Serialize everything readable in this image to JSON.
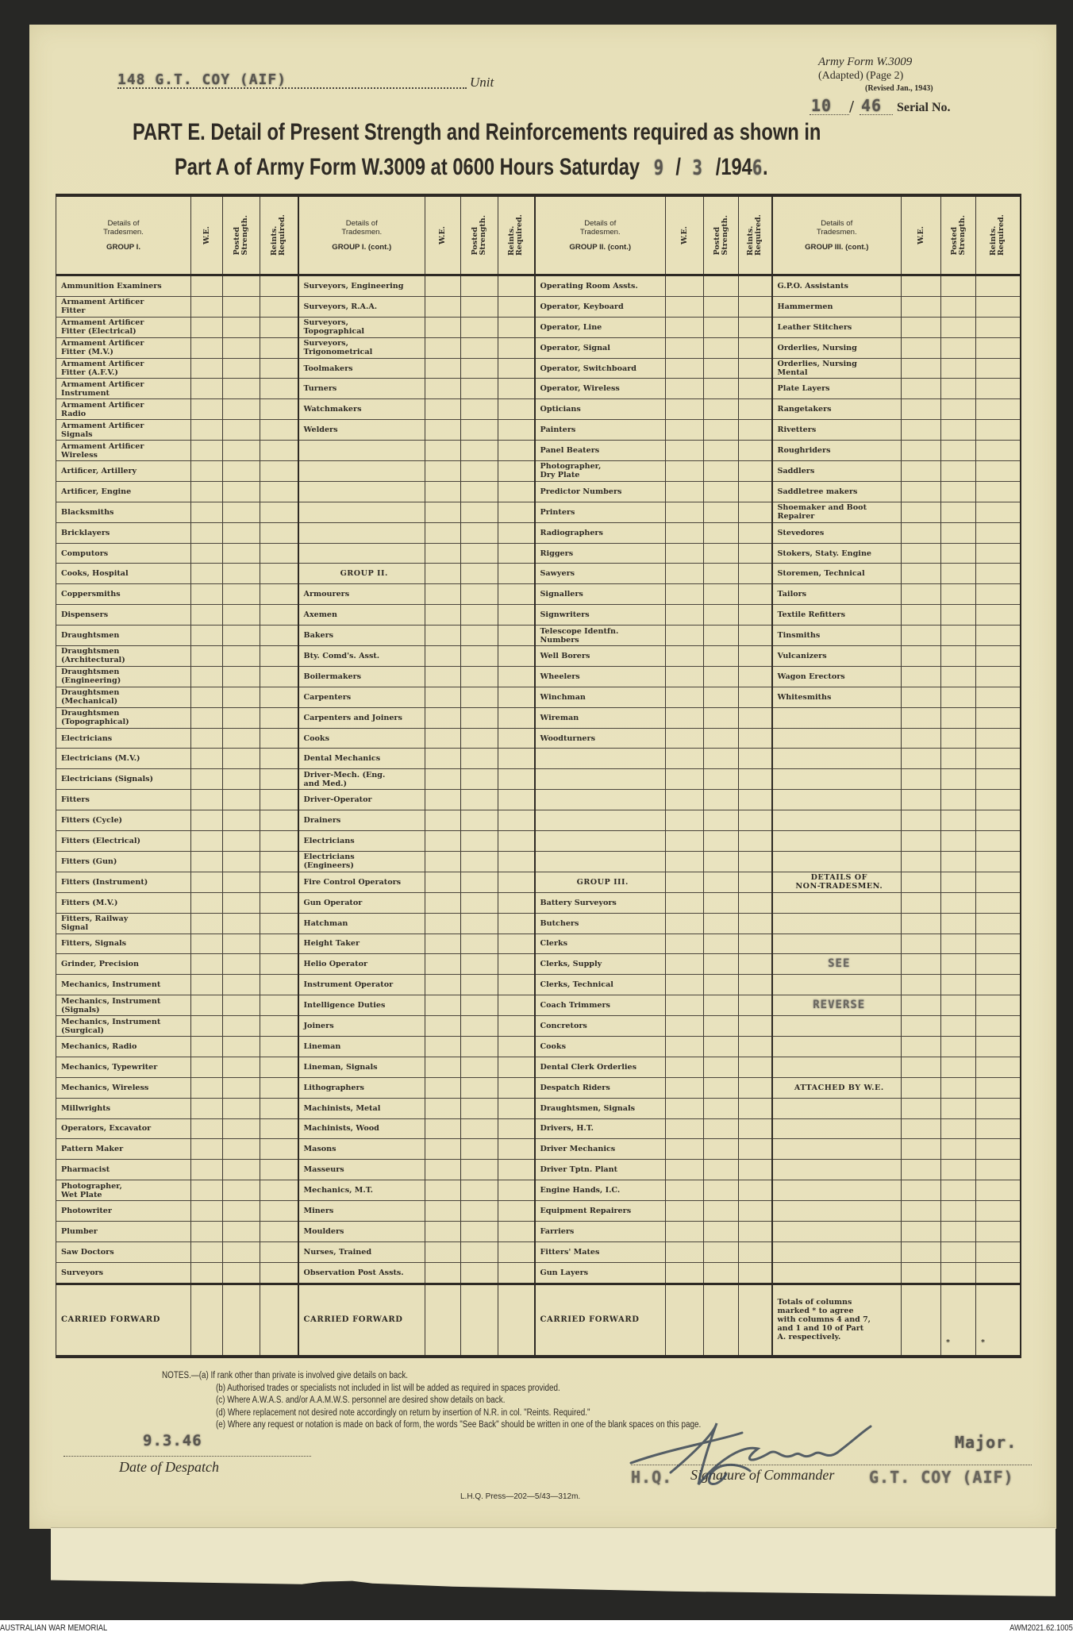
{
  "header": {
    "unit_value": "148 G.T. COY (AIF)",
    "unit_label": "Unit",
    "form_line1": "Army Form W.3009",
    "form_line2": "(Adapted) (Page 2)",
    "form_line3": "(Revised Jan., 1943)",
    "serial_a": "10",
    "serial_sep": "/",
    "serial_b": "46",
    "serial_label": "Serial No.",
    "title_line1": "PART E.  Detail of Present Strength and Reinforcements required as shown in",
    "title_line2_prefix": "Part A of Army Form W.3009 at 0600 Hours Saturday",
    "date_day": "9",
    "date_month": "3",
    "date_year_prefix": "/194",
    "date_year_digit": "6",
    "sep": "/",
    "period": "."
  },
  "table": {
    "subheads": {
      "we": "W.E.",
      "posted": "Posted\nStrength.",
      "reints": "Reints.\nRequired."
    },
    "columns": [
      {
        "title1": "Details of",
        "title2": "Tradesmen.",
        "group": "GROUP I.",
        "items": [
          "Ammunition Examiners",
          "Armament Artificer\nFitter",
          "Armament Artificer\nFitter (Electrical)",
          "Armament Artificer\nFitter (M.V.)",
          "Armament Artificer\nFitter (A.F.V.)",
          "Armament Artificer\nInstrument",
          "Armament Artificer\nRadio",
          "Armament Artificer\nSignals",
          "Armament Artificer\nWireless",
          "Artificer, Artillery",
          "Artificer, Engine",
          "Blacksmiths",
          "Bricklayers",
          "Computors",
          "Cooks, Hospital",
          "Coppersmiths",
          "Dispensers",
          "Draughtsmen",
          "Draughtsmen\n(Architectural)",
          "Draughtsmen\n(Engineering)",
          "Draughtsmen\n(Mechanical)",
          "Draughtsmen\n(Topographical)",
          "Electricians",
          "Electricians (M.V.)",
          "Electricians (Signals)",
          "Fitters",
          "Fitters (Cycle)",
          "Fitters (Electrical)",
          "Fitters (Gun)",
          "Fitters (Instrument)",
          "Fitters (M.V.)",
          "Fitters, Railway\nSignal",
          "Fitters, Signals",
          "Grinder, Precision",
          "Mechanics, Instrument",
          "Mechanics, Instrument\n(Signals)",
          "Mechanics, Instrument\n(Surgical)",
          "Mechanics, Radio",
          "Mechanics, Typewriter",
          "Mechanics, Wireless",
          "Millwrights",
          "Operators, Excavator",
          "Pattern Maker",
          "Pharmacist",
          "Photographer,\nWet Plate",
          "Photowriter",
          "Plumber",
          "Saw Doctors",
          "Surveyors"
        ],
        "footer": "CARRIED FORWARD"
      },
      {
        "title1": "Details of",
        "title2": "Tradesmen.",
        "group": "GROUP I. (cont.)",
        "items": [
          "Surveyors, Engineering",
          "Surveyors, R.A.A.",
          "Surveyors,\nTopographical",
          "Surveyors,\nTrigonometrical",
          "Toolmakers",
          "Turners",
          "Watchmakers",
          "Welders",
          "",
          "",
          "",
          "",
          "",
          "",
          {
            "heading": "GROUP II."
          },
          "Armourers",
          "Axemen",
          "Bakers",
          "Bty. Comd's. Asst.",
          "Boilermakers",
          "Carpenters",
          "Carpenters and Joiners",
          "Cooks",
          "Dental Mechanics",
          "Driver-Mech. (Eng.\nand Med.)",
          "Driver-Operator",
          "Drainers",
          "Electricians",
          "Electricians\n(Engineers)",
          "Fire Control Operators",
          "Gun Operator",
          "Hatchman",
          "Height Taker",
          "Helio Operator",
          "Instrument Operator",
          "Intelligence Duties",
          "Joiners",
          "Lineman",
          "Lineman, Signals",
          "Lithographers",
          "Machinists, Metal",
          "Machinists, Wood",
          "Masons",
          "Masseurs",
          "Mechanics, M.T.",
          "Miners",
          "Moulders",
          "Nurses, Trained",
          "Observation Post Assts."
        ],
        "footer": "CARRIED FORWARD"
      },
      {
        "title1": "Details of",
        "title2": "Tradesmen.",
        "group": "GROUP II. (cont.)",
        "items": [
          "Operating Room Assts.",
          "Operator, Keyboard",
          "Operator, Line",
          "Operator, Signal",
          "Operator, Switchboard",
          "Operator, Wireless",
          "Opticians",
          "Painters",
          "Panel Beaters",
          "Photographer,\nDry Plate",
          "Predictor Numbers",
          "Printers",
          "Radiographers",
          "Riggers",
          "Sawyers",
          "Signallers",
          "Signwriters",
          "Telescope Identfn.\nNumbers",
          "Well Borers",
          "Wheelers",
          "Winchman",
          "Wireman",
          "Woodturners",
          "",
          "",
          "",
          "",
          "",
          "",
          {
            "heading": "GROUP III."
          },
          "Battery Surveyors",
          "Butchers",
          "Clerks",
          "Clerks, Supply",
          "Clerks, Technical",
          "Coach Trimmers",
          "Concretors",
          "Cooks",
          "Dental Clerk Orderlies",
          "Despatch Riders",
          "Draughtsmen, Signals",
          "Drivers, H.T.",
          "Driver Mechanics",
          "Driver Tptn. Plant",
          "Engine Hands, I.C.",
          "Equipment Repairers",
          "Farriers",
          "Fitters' Mates",
          "Gun Layers"
        ],
        "footer": "CARRIED FORWARD"
      },
      {
        "title1": "Details of",
        "title2": "Tradesmen.",
        "group": "GROUP III. (cont.)",
        "items": [
          "G.P.O. Assistants",
          "Hammermen",
          "Leather Stitchers",
          "Orderlies, Nursing",
          "Orderlies, Nursing\nMental",
          "Plate Layers",
          "Rangetakers",
          "Rivetters",
          "Roughriders",
          "Saddlers",
          "Saddletree makers",
          "Shoemaker and Boot\nRepairer",
          "Stevedores",
          "Stokers, Staty. Engine",
          "Storemen, Technical",
          "Tailors",
          "Textile Refitters",
          "Tinsmiths",
          "Vulcanizers",
          "Wagon Erectors",
          "Whitesmiths",
          "",
          "",
          "",
          "",
          "",
          "",
          "",
          "",
          {
            "heading": "DETAILS OF\nNON-TRADESMEN."
          },
          "",
          "",
          "",
          {
            "stamp": "SEE"
          },
          "",
          {
            "stamp": "REVERSE"
          },
          "",
          "",
          "",
          {
            "heading": "ATTACHED BY W.E."
          },
          "",
          "",
          "",
          "",
          "",
          "",
          "",
          "",
          ""
        ],
        "footer": "Totals of columns\nmarked  *  to agree\nwith columns 4 and 7,\nand 1 and 10 of Part\nA.  respectively.",
        "footer_marks": [
          "*",
          "*"
        ]
      }
    ]
  },
  "notes": [
    "NOTES.—(a) If rank other than private is involved give details on back.",
    "(b) Authorised trades or specialists not included in list will be added as required in spaces provided.",
    "(c) Where A.W.A.S. and/or A.A.M.W.S. personnel are desired show details on back.",
    "(d) Where replacement not desired note accordingly on return by insertion of N.R. in col. \"Reints. Required.\"",
    "(e) Where any request or notation is made on back of form, the words \"See Back\" should be written in one of the blank spaces on this page."
  ],
  "footer": {
    "despatch_date": "9.3.46",
    "despatch_label": "Date of Despatch",
    "rank": "Major.",
    "signature_label": "Signature of Commander",
    "stamp_left": "H.Q.",
    "stamp_right": "G.T. COY (AIF)",
    "printer": "L.H.Q. Press—202—5/43—312m."
  },
  "credit": {
    "left": "AUSTRALIAN WAR MEMORIAL",
    "right": "AWM2021.62.1005"
  },
  "colors": {
    "paper": "#e7e0b9",
    "ink": "#2e2a24",
    "background": "#272725",
    "signature_ink": "#3a4756"
  }
}
